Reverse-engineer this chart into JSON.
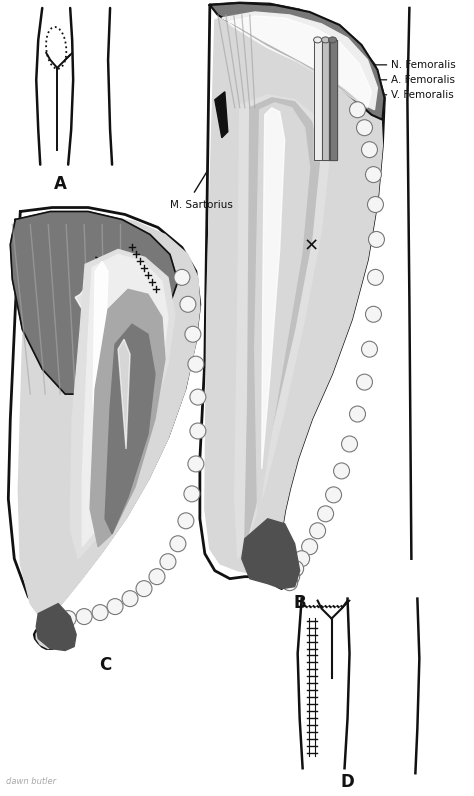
{
  "bg_color": "#ffffff",
  "line_color": "#111111",
  "labels": {
    "n_femoralis": "N. Femoralis",
    "a_femoralis": "A. Femoralis",
    "v_femoralis": "V. Femoralis",
    "m_sartorius": "M. Sartorius"
  },
  "colors": {
    "white": "#ffffff",
    "gray_vlight": "#eeeeee",
    "gray_light": "#d8d8d8",
    "gray_med_light": "#c0c0c0",
    "gray_mid": "#a8a8a8",
    "gray_dark": "#787878",
    "gray_darker": "#505050",
    "gray_very_dark": "#303030",
    "fat_white": "#f5f5f5",
    "muscle_light": "#e0e0e0",
    "muscle_mid": "#b5b5b5",
    "muscle_dark": "#888888",
    "skin_dark": "#909090",
    "black": "#111111"
  }
}
